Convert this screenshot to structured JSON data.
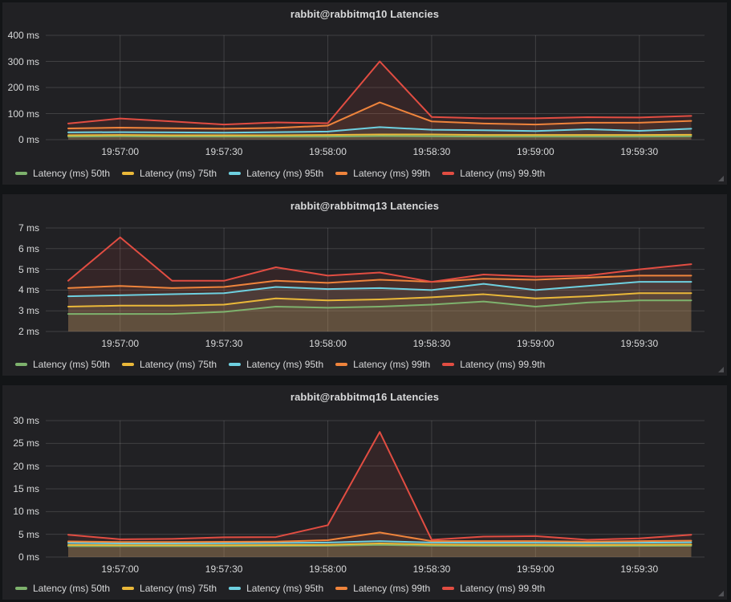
{
  "panels": [
    {
      "title": "rabbit@rabbitmq10 Latencies",
      "chart_data": {
        "type": "area",
        "title": "rabbit@rabbitmq10 Latencies",
        "y_unit": "ms",
        "ylim": [
          0,
          400
        ],
        "y_tick_labels": [
          "0 ms",
          "100 ms",
          "200 ms",
          "300 ms",
          "400 ms"
        ],
        "x": [
          "19:56:45",
          "19:57:00",
          "19:57:15",
          "19:57:30",
          "19:57:45",
          "19:58:00",
          "19:58:15",
          "19:58:30",
          "19:58:45",
          "19:59:00",
          "19:59:15",
          "19:59:30",
          "19:59:45"
        ],
        "x_tick_labels": [
          "19:57:00",
          "19:57:30",
          "19:58:00",
          "19:58:30",
          "19:59:00",
          "19:59:30"
        ],
        "x_tick_indices": [
          1,
          3,
          5,
          7,
          9,
          11
        ],
        "grid": true,
        "legend_position": "bottom",
        "series": [
          {
            "name": "Latency (ms) 50th",
            "color": "#7EB26D",
            "values": [
              12,
              13,
              12,
              12,
              12,
              12,
              14,
              13,
              12,
              12,
              12,
              12,
              13
            ]
          },
          {
            "name": "Latency (ms) 75th",
            "color": "#EAB839",
            "values": [
              17,
              18,
              17,
              17,
              17,
              18,
              20,
              20,
              18,
              18,
              18,
              18,
              19
            ]
          },
          {
            "name": "Latency (ms) 95th",
            "color": "#6ED0E0",
            "values": [
              28,
              29,
              28,
              27,
              29,
              31,
              48,
              38,
              36,
              33,
              40,
              34,
              42
            ]
          },
          {
            "name": "Latency (ms) 99th",
            "color": "#EF843C",
            "values": [
              43,
              46,
              44,
              42,
              45,
              54,
              143,
              70,
              62,
              58,
              65,
              65,
              72
            ]
          },
          {
            "name": "Latency (ms) 99.9th",
            "color": "#E24D42",
            "values": [
              62,
              81,
              70,
              58,
              66,
              63,
              300,
              87,
              82,
              82,
              86,
              85,
              91
            ]
          }
        ]
      }
    },
    {
      "title": "rabbit@rabbitmq13 Latencies",
      "chart_data": {
        "type": "area",
        "title": "rabbit@rabbitmq13 Latencies",
        "y_unit": "ms",
        "ylim": [
          2,
          7
        ],
        "y_tick_labels": [
          "2 ms",
          "3 ms",
          "4 ms",
          "5 ms",
          "6 ms",
          "7 ms"
        ],
        "x": [
          "19:56:45",
          "19:57:00",
          "19:57:15",
          "19:57:30",
          "19:57:45",
          "19:58:00",
          "19:58:15",
          "19:58:30",
          "19:58:45",
          "19:59:00",
          "19:59:15",
          "19:59:30",
          "19:59:45"
        ],
        "x_tick_labels": [
          "19:57:00",
          "19:57:30",
          "19:58:00",
          "19:58:30",
          "19:59:00",
          "19:59:30"
        ],
        "x_tick_indices": [
          1,
          3,
          5,
          7,
          9,
          11
        ],
        "grid": true,
        "legend_position": "bottom",
        "series": [
          {
            "name": "Latency (ms) 50th",
            "color": "#7EB26D",
            "values": [
              2.85,
              2.85,
              2.85,
              2.95,
              3.2,
              3.15,
              3.2,
              3.3,
              3.45,
              3.2,
              3.4,
              3.5,
              3.5
            ]
          },
          {
            "name": "Latency (ms) 75th",
            "color": "#EAB839",
            "values": [
              3.2,
              3.25,
              3.25,
              3.3,
              3.6,
              3.5,
              3.55,
              3.65,
              3.8,
              3.6,
              3.7,
              3.85,
              3.85
            ]
          },
          {
            "name": "Latency (ms) 95th",
            "color": "#6ED0E0",
            "values": [
              3.7,
              3.75,
              3.8,
              3.85,
              4.15,
              4.05,
              4.1,
              4.0,
              4.3,
              4.0,
              4.2,
              4.4,
              4.4
            ]
          },
          {
            "name": "Latency (ms) 99th",
            "color": "#EF843C",
            "values": [
              4.1,
              4.2,
              4.1,
              4.15,
              4.45,
              4.35,
              4.5,
              4.4,
              4.55,
              4.5,
              4.6,
              4.7,
              4.7
            ]
          },
          {
            "name": "Latency (ms) 99.9th",
            "color": "#E24D42",
            "values": [
              4.45,
              6.55,
              4.45,
              4.45,
              5.1,
              4.7,
              4.85,
              4.4,
              4.75,
              4.65,
              4.7,
              5.0,
              5.25
            ]
          }
        ]
      }
    },
    {
      "title": "rabbit@rabbitmq16 Latencies",
      "chart_data": {
        "type": "area",
        "title": "rabbit@rabbitmq16 Latencies",
        "y_unit": "ms",
        "ylim": [
          0,
          30
        ],
        "y_tick_labels": [
          "0 ms",
          "5 ms",
          "10 ms",
          "15 ms",
          "20 ms",
          "25 ms",
          "30 ms"
        ],
        "x": [
          "19:56:45",
          "19:57:00",
          "19:57:15",
          "19:57:30",
          "19:57:45",
          "19:58:00",
          "19:58:15",
          "19:58:30",
          "19:58:45",
          "19:59:00",
          "19:59:15",
          "19:59:30",
          "19:59:45"
        ],
        "x_tick_labels": [
          "19:57:00",
          "19:57:30",
          "19:58:00",
          "19:58:30",
          "19:59:00",
          "19:59:30"
        ],
        "x_tick_indices": [
          1,
          3,
          5,
          7,
          9,
          11
        ],
        "grid": true,
        "legend_position": "bottom",
        "series": [
          {
            "name": "Latency (ms) 50th",
            "color": "#7EB26D",
            "values": [
              2.4,
              2.4,
              2.4,
              2.4,
              2.45,
              2.5,
              2.7,
              2.5,
              2.45,
              2.45,
              2.4,
              2.45,
              2.5
            ]
          },
          {
            "name": "Latency (ms) 75th",
            "color": "#EAB839",
            "values": [
              2.65,
              2.6,
              2.6,
              2.6,
              2.65,
              2.7,
              3.0,
              2.75,
              2.7,
              2.7,
              2.65,
              2.7,
              2.75
            ]
          },
          {
            "name": "Latency (ms) 95th",
            "color": "#6ED0E0",
            "values": [
              3.1,
              3.0,
              3.0,
              3.05,
              3.1,
              3.2,
              3.5,
              3.2,
              3.15,
              3.15,
              3.1,
              3.15,
              3.25
            ]
          },
          {
            "name": "Latency (ms) 99th",
            "color": "#EF843C",
            "values": [
              3.45,
              3.3,
              3.3,
              3.35,
              3.4,
              3.7,
              5.4,
              3.5,
              3.5,
              3.5,
              3.4,
              3.5,
              3.6
            ]
          },
          {
            "name": "Latency (ms) 99.9th",
            "color": "#E24D42",
            "values": [
              4.9,
              3.9,
              4.0,
              4.35,
              4.4,
              7.0,
              27.5,
              3.8,
              4.5,
              4.6,
              3.8,
              4.1,
              4.9
            ]
          }
        ]
      }
    }
  ]
}
